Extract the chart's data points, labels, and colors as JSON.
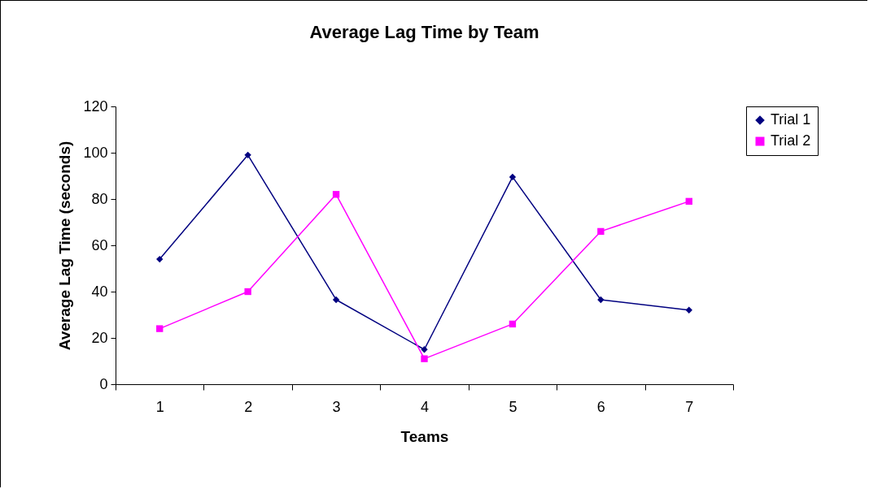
{
  "chart_data": {
    "type": "line",
    "title": "Average Lag Time by Team",
    "xlabel": "Teams",
    "ylabel": "Average Lag Time (seconds)",
    "categories": [
      "1",
      "2",
      "3",
      "4",
      "5",
      "6",
      "7"
    ],
    "series": [
      {
        "name": "Trial 1",
        "color": "#000080",
        "marker": "diamond",
        "values": [
          54,
          99,
          36.5,
          15,
          89.5,
          36.5,
          32
        ]
      },
      {
        "name": "Trial 2",
        "color": "#ff00ff",
        "marker": "square",
        "values": [
          24,
          40,
          82,
          11,
          26,
          66,
          79
        ]
      }
    ],
    "ylim": [
      0,
      120
    ],
    "yticks": [
      0,
      20,
      40,
      60,
      80,
      100,
      120
    ],
    "grid": false,
    "legend": "right"
  }
}
